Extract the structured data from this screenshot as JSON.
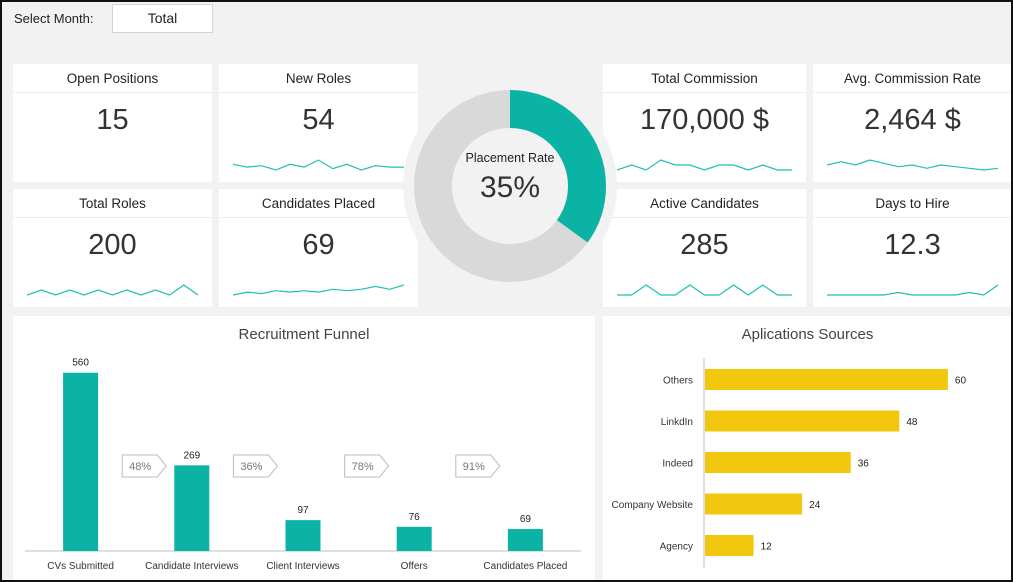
{
  "header": {
    "select_label": "Select Month:",
    "month_value": "Total"
  },
  "kpis": [
    {
      "id": "open-positions",
      "title": "Open Positions",
      "value": "15",
      "spark": []
    },
    {
      "id": "new-roles",
      "title": "New Roles",
      "value": "54",
      "spark": [
        5,
        3,
        4,
        1,
        5,
        3,
        8,
        2,
        5,
        1,
        4,
        3,
        3
      ]
    },
    {
      "id": "total-roles",
      "title": "Total Roles",
      "value": "200",
      "spark": [
        2,
        3,
        2,
        3,
        2,
        3,
        2,
        3,
        2,
        3,
        2,
        4,
        2
      ]
    },
    {
      "id": "candidates-placed",
      "title": "Candidates Placed",
      "value": "69",
      "spark": [
        2,
        4,
        3,
        5,
        4,
        5,
        4,
        6,
        5,
        6,
        8,
        6,
        9
      ]
    },
    {
      "id": "total-commission",
      "title": "Total Commission",
      "value": "170,000 $",
      "spark": [
        3,
        4,
        3,
        5,
        4,
        4,
        3,
        4,
        4,
        3,
        4,
        3,
        3
      ]
    },
    {
      "id": "avg-commission-rate",
      "title": "Avg. Commission Rate",
      "value": "2,464 $",
      "spark": [
        4,
        6,
        4,
        7,
        5,
        3,
        4,
        2,
        4,
        3,
        2,
        1,
        2
      ]
    },
    {
      "id": "active-candidates",
      "title": "Active Candidates",
      "value": "285",
      "spark": [
        3,
        3,
        4,
        3,
        3,
        4,
        3,
        3,
        4,
        3,
        4,
        3,
        3
      ]
    },
    {
      "id": "days-to-hire",
      "title": "Days to Hire",
      "value": "12.3",
      "spark": [
        3,
        3,
        3,
        3,
        3,
        4,
        3,
        3,
        3,
        3,
        4,
        3,
        7
      ]
    }
  ],
  "placement": {
    "title": "Placement Rate",
    "value_label": "35%",
    "fraction": 0.35,
    "fill_color": "#0bb3a4",
    "track_color": "#d9d9d9"
  },
  "chart_data": [
    {
      "type": "bar",
      "title": "Recruitment Funnel",
      "categories": [
        "CVs Submitted",
        "Candidate Interviews",
        "Client Interviews",
        "Offers",
        "Candidates Placed"
      ],
      "values": [
        560,
        269,
        97,
        76,
        69
      ],
      "conversion_labels": [
        "48%",
        "36%",
        "78%",
        "91%"
      ],
      "ylim": [
        0,
        600
      ],
      "color": "#0bb3a4"
    },
    {
      "type": "bar",
      "orientation": "horizontal",
      "title": "Aplications Sources",
      "categories": [
        "Others",
        "LinkdIn",
        "Indeed",
        "Company Website",
        "Agency"
      ],
      "values": [
        60,
        48,
        36,
        24,
        12
      ],
      "xlim": [
        0,
        62
      ],
      "color": "#f2c80f"
    }
  ]
}
